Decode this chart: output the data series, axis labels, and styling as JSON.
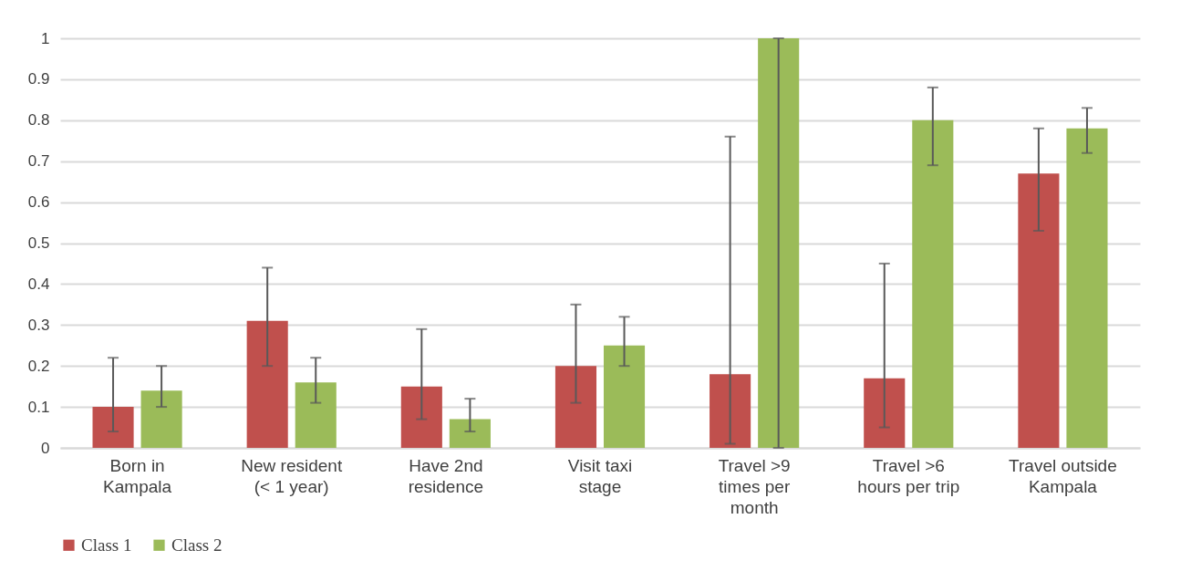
{
  "chart_data": {
    "type": "bar",
    "categories": [
      "Born in Kampala",
      "New resident (< 1 year)",
      "Have 2nd residence",
      "Visit taxi stage",
      "Travel >9 times per month",
      "Travel >6 hours per trip",
      "Travel outside Kampala"
    ],
    "series": [
      {
        "name": "Class 1",
        "color": "#c0504d",
        "values": [
          0.1,
          0.31,
          0.15,
          0.2,
          0.18,
          0.17,
          0.67
        ],
        "errors": [
          [
            0.04,
            0.22
          ],
          [
            0.2,
            0.44
          ],
          [
            0.07,
            0.29
          ],
          [
            0.11,
            0.35
          ],
          [
            0.01,
            0.76
          ],
          [
            0.05,
            0.45
          ],
          [
            0.53,
            0.78
          ]
        ]
      },
      {
        "name": "Class 2",
        "color": "#9bbb59",
        "values": [
          0.14,
          0.16,
          0.07,
          0.25,
          1.0,
          0.8,
          0.78
        ],
        "errors": [
          [
            0.1,
            0.2
          ],
          [
            0.11,
            0.22
          ],
          [
            0.04,
            0.12
          ],
          [
            0.2,
            0.32
          ],
          [
            0,
            1.0
          ],
          [
            0.69,
            0.88
          ],
          [
            0.72,
            0.83
          ]
        ]
      }
    ],
    "ylim": [
      0,
      1
    ],
    "yticks": [
      0,
      0.1,
      0.2,
      0.3,
      0.4,
      0.5,
      0.6,
      0.7,
      0.8,
      0.9,
      1
    ],
    "grid": "y",
    "legend": "bottom"
  }
}
